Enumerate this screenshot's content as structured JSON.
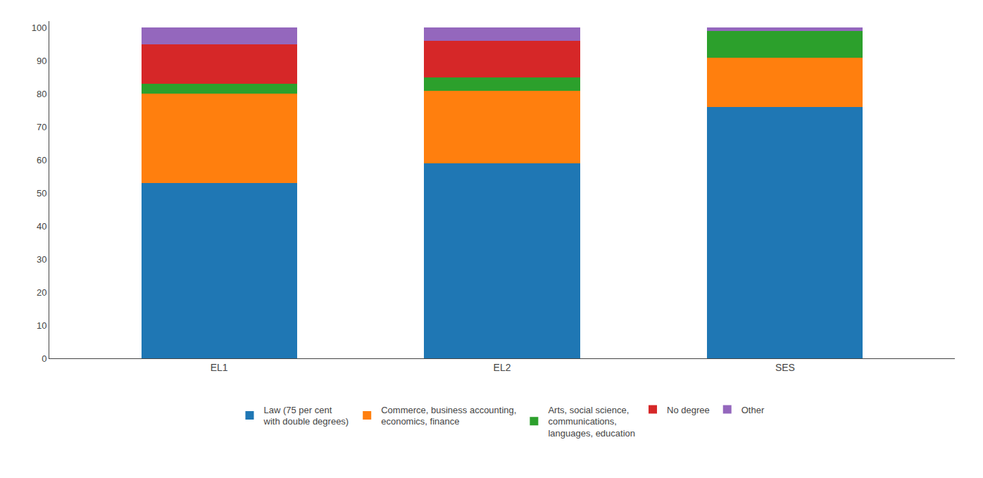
{
  "chart_data": {
    "type": "bar",
    "stacked": true,
    "categories": [
      "EL1",
      "EL2",
      "SES"
    ],
    "series": [
      {
        "name": "Law (75 per cent\nwith double degrees)",
        "values": [
          53,
          59,
          76
        ]
      },
      {
        "name": "Commerce, business accounting,\neconomics, finance",
        "values": [
          27,
          22,
          15
        ]
      },
      {
        "name": "Arts, social science,\ncommunications,\nlanguages, education",
        "values": [
          3,
          4,
          8
        ]
      },
      {
        "name": "No degree",
        "values": [
          12,
          11,
          0
        ]
      },
      {
        "name": "Other",
        "values": [
          5,
          4,
          1
        ]
      }
    ],
    "ylim": [
      0,
      102
    ],
    "yticks": [
      0,
      10,
      20,
      30,
      40,
      50,
      60,
      70,
      80,
      90,
      100
    ],
    "grid": false,
    "legend": "bottom"
  }
}
